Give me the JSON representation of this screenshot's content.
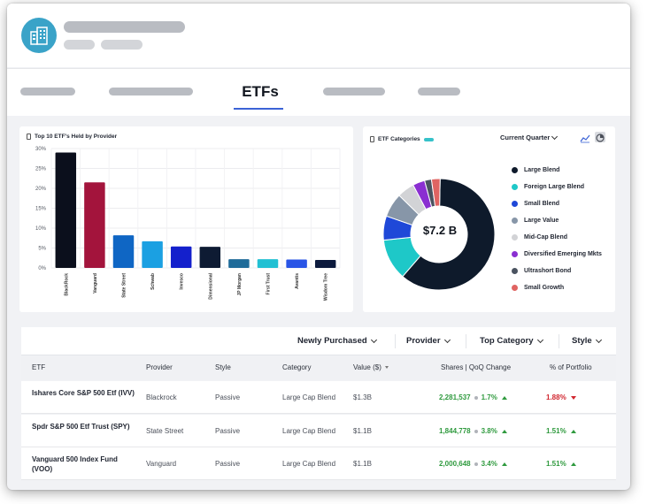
{
  "nav": {
    "active_tab": "ETFs"
  },
  "provider_chart": {
    "title": "Top 10 ETF's Held by Provider",
    "chart_data": {
      "type": "bar",
      "title": "Top 10 ETF's Held by Provider",
      "categories": [
        "BlackRock",
        "Vanguard",
        "State Street",
        "Schwab",
        "Invesco",
        "Dimensional",
        "JP Morgan",
        "First Trust",
        "Avantis",
        "Wisdom Tree"
      ],
      "values": [
        29,
        21.5,
        8.2,
        6.7,
        5.4,
        5.3,
        2.2,
        2.2,
        2.1,
        2.0
      ],
      "colors": [
        "#0b0f1c",
        "#a3143c",
        "#0f66c4",
        "#1ba0e2",
        "#1420cc",
        "#0e1b33",
        "#1f6b99",
        "#22c0d3",
        "#2a55e6",
        "#0c1a3d"
      ],
      "yticks": [
        "0%",
        "5%",
        "10%",
        "15%",
        "20%",
        "25%",
        "30%"
      ],
      "ylim": [
        0,
        30
      ],
      "grid": true
    }
  },
  "categories_card": {
    "title": "ETF Categories",
    "period": "Current Quarter",
    "total": "$7.2 B",
    "chart_data": {
      "type": "pie",
      "categories": [
        "Large Blend",
        "Foreign Large Blend",
        "Small Blend",
        "Large Value",
        "Mid-Cap Blend",
        "Diversified Emerging Mkts",
        "Ultrashort Bond",
        "Small Growth"
      ],
      "values": [
        61,
        12,
        7,
        7,
        5,
        3.5,
        2,
        2.5
      ],
      "colors": [
        "#0e1a2b",
        "#1ec8c8",
        "#1f48d8",
        "#8796a8",
        "#d2d3d6",
        "#8a2fd1",
        "#4a5360",
        "#e06462"
      ]
    }
  },
  "filters": [
    {
      "label": "Newly Purchased"
    },
    {
      "label": "Provider"
    },
    {
      "label": "Top Category"
    },
    {
      "label": "Style"
    }
  ],
  "table": {
    "columns": [
      "ETF",
      "Provider",
      "Style",
      "Category",
      "Value ($)",
      "Shares | QoQ Change",
      "% of Portfolio"
    ],
    "rows": [
      {
        "name": "Ishares Core S&P 500 Etf (IVV)",
        "provider": "Blackrock",
        "style": "Passive",
        "category": "Large Cap Blend",
        "value": "$1.3B",
        "shares": "2,281,537",
        "change": "1.7%",
        "change_dir": "up",
        "portfolio": "1.88%",
        "portfolio_dir": "down"
      },
      {
        "name": "Spdr S&P 500 Etf Trust (SPY)",
        "provider": "State Street",
        "style": "Passive",
        "category": "Large Cap Blend",
        "value": "$1.1B",
        "shares": "1,844,778",
        "change": "3.8%",
        "change_dir": "up",
        "portfolio": "1.51%",
        "portfolio_dir": "up"
      },
      {
        "name": "Vanguard 500 Index Fund (VOO)",
        "provider": "Vanguard",
        "style": "Passive",
        "category": "Large Cap Blend",
        "value": "$1.1B",
        "shares": "2,000,648",
        "change": "3.4%",
        "change_dir": "up",
        "portfolio": "1.51%",
        "portfolio_dir": "up"
      }
    ]
  }
}
